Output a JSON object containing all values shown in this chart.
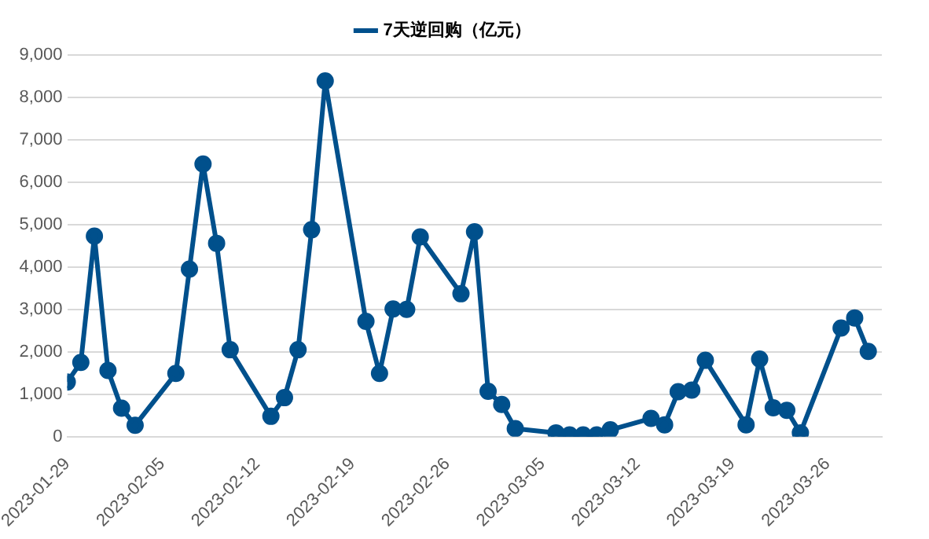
{
  "chart_data": {
    "type": "line",
    "x": [
      "2023-01-29",
      "2023-01-30",
      "2023-01-31",
      "2023-02-01",
      "2023-02-02",
      "2023-02-03",
      "2023-02-06",
      "2023-02-07",
      "2023-02-08",
      "2023-02-09",
      "2023-02-10",
      "2023-02-13",
      "2023-02-14",
      "2023-02-15",
      "2023-02-16",
      "2023-02-17",
      "2023-02-20",
      "2023-02-21",
      "2023-02-22",
      "2023-02-23",
      "2023-02-24",
      "2023-02-27",
      "2023-02-28",
      "2023-03-01",
      "2023-03-02",
      "2023-03-03",
      "2023-03-06",
      "2023-03-07",
      "2023-03-08",
      "2023-03-09",
      "2023-03-10",
      "2023-03-13",
      "2023-03-14",
      "2023-03-15",
      "2023-03-16",
      "2023-03-17",
      "2023-03-20",
      "2023-03-21",
      "2023-03-22",
      "2023-03-23",
      "2023-03-24",
      "2023-03-27",
      "2023-03-28",
      "2023-03-29"
    ],
    "series": [
      {
        "name": "7天逆回购（亿元）",
        "color": "#00508c",
        "values": [
          1290,
          1750,
          4730,
          1560,
          670,
          270,
          1490,
          3950,
          6430,
          4560,
          2050,
          480,
          920,
          2050,
          4880,
          8390,
          2720,
          1490,
          3010,
          3000,
          4710,
          3370,
          4830,
          1070,
          760,
          190,
          90,
          40,
          40,
          40,
          160,
          430,
          280,
          1060,
          1100,
          1800,
          280,
          1830,
          680,
          620,
          90,
          2560,
          2800,
          2010
        ]
      }
    ],
    "xlim": [
      "2023-01-29",
      "2023-03-30"
    ],
    "xticks": [
      "2023-01-29",
      "2023-02-05",
      "2023-02-12",
      "2023-02-19",
      "2023-02-26",
      "2023-03-05",
      "2023-03-12",
      "2023-03-19",
      "2023-03-26"
    ],
    "ylim": [
      0,
      9000
    ],
    "yticks": [
      0,
      {
        "value": 1000,
        "label": "1,000"
      },
      {
        "value": 2000,
        "label": "2,000"
      },
      {
        "value": 3000,
        "label": "3,000"
      },
      {
        "value": 4000,
        "label": "4,000"
      },
      {
        "value": 5000,
        "label": "5,000"
      },
      {
        "value": 6000,
        "label": "6,000"
      },
      {
        "value": 7000,
        "label": "7,000"
      },
      {
        "value": 8000,
        "label": "8,000"
      },
      {
        "value": 9000,
        "label": "9,000"
      }
    ],
    "grid": "y",
    "legend": "top",
    "marker": "circle",
    "line_style": "solid"
  }
}
